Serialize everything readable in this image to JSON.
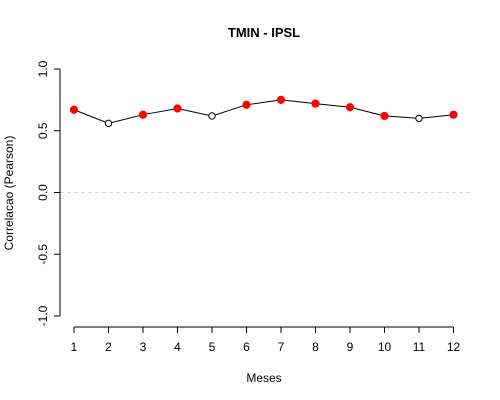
{
  "chart_data": {
    "type": "line",
    "title": "TMIN - IPSL",
    "xlabel": "Meses",
    "ylabel": "Correlacao (Pearson)",
    "x": [
      1,
      2,
      3,
      4,
      5,
      6,
      7,
      8,
      9,
      10,
      11,
      12
    ],
    "xticks": [
      "1",
      "2",
      "3",
      "4",
      "5",
      "6",
      "7",
      "8",
      "9",
      "10",
      "11",
      "12"
    ],
    "yticks": [
      "-1.0",
      "-0.5",
      "0.0",
      "0.5",
      "1.0"
    ],
    "ylim": [
      -1.0,
      1.0
    ],
    "reference_line": 0.0,
    "grid": false,
    "series": [
      {
        "values": [
          0.67,
          0.56,
          0.63,
          0.68,
          0.62,
          0.71,
          0.75,
          0.72,
          0.69,
          0.62,
          0.6,
          0.63
        ],
        "significant": [
          true,
          false,
          true,
          true,
          false,
          true,
          true,
          true,
          true,
          true,
          false,
          true
        ]
      }
    ],
    "colors": {
      "significant_marker": "#ff0000",
      "nonsignificant_marker": "#ffffff",
      "line": "#000000",
      "reference_line": "#d3d3d3"
    }
  }
}
